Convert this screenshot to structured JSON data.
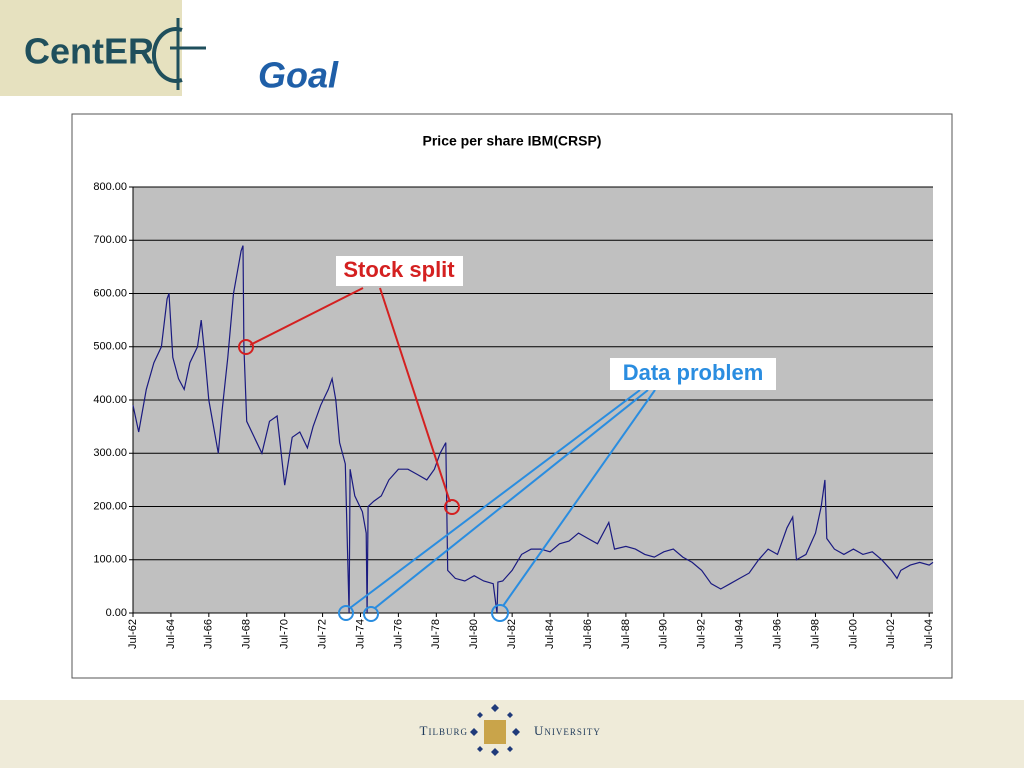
{
  "header": {
    "logo": "CentER",
    "title": "Goal"
  },
  "chart_data": {
    "type": "line",
    "title": "Price per share IBM(CRSP)",
    "x": [
      1962.5,
      1962.8,
      1963.2,
      1963.6,
      1964.0,
      1964.3,
      1964.4,
      1964.6,
      1964.9,
      1965.2,
      1965.5,
      1965.9,
      1966.1,
      1966.3,
      1966.5,
      1966.8,
      1967.0,
      1967.2,
      1967.5,
      1967.8,
      1968.0,
      1968.2,
      1968.3,
      1968.35,
      1968.5,
      1968.9,
      1969.3,
      1969.7,
      1970.1,
      1970.5,
      1970.9,
      1971.3,
      1971.7,
      1972.0,
      1972.4,
      1972.8,
      1973.0,
      1973.2,
      1973.4,
      1973.7,
      1973.9,
      1973.95,
      1974.2,
      1974.6,
      1974.8,
      1974.85,
      1974.9,
      1975.2,
      1975.6,
      1976.0,
      1976.5,
      1977.0,
      1977.5,
      1978.0,
      1978.4,
      1978.7,
      1979.0,
      1979.1,
      1979.5,
      1980.0,
      1980.5,
      1981.0,
      1981.5,
      1981.7,
      1981.75,
      1982.0,
      1982.5,
      1983.0,
      1983.5,
      1984.0,
      1984.5,
      1985.0,
      1985.5,
      1986.0,
      1986.5,
      1987.0,
      1987.6,
      1987.9,
      1988.5,
      1989.0,
      1989.5,
      1990.0,
      1990.5,
      1991.0,
      1991.5,
      1992.0,
      1992.5,
      1993.0,
      1993.5,
      1994.0,
      1994.5,
      1995.0,
      1995.5,
      1996.0,
      1996.5,
      1997.0,
      1997.3,
      1997.5,
      1998.0,
      1998.5,
      1998.8,
      1999.0,
      1999.1,
      1999.5,
      2000.0,
      2000.5,
      2001.0,
      2001.5,
      2002.0,
      2002.5,
      2002.8,
      2003.0,
      2003.5,
      2004.0,
      2004.5,
      2004.7
    ],
    "values": [
      390,
      340,
      420,
      470,
      500,
      590,
      600,
      480,
      440,
      420,
      470,
      500,
      550,
      480,
      400,
      340,
      300,
      380,
      480,
      600,
      640,
      680,
      690,
      500,
      360,
      330,
      300,
      360,
      370,
      240,
      330,
      340,
      310,
      350,
      390,
      420,
      440,
      400,
      320,
      280,
      0,
      270,
      220,
      190,
      150,
      0,
      200,
      210,
      220,
      250,
      270,
      270,
      260,
      250,
      270,
      300,
      320,
      80,
      65,
      60,
      70,
      60,
      55,
      0,
      58,
      60,
      80,
      110,
      120,
      120,
      115,
      130,
      135,
      150,
      140,
      130,
      170,
      120,
      125,
      120,
      110,
      105,
      115,
      120,
      105,
      95,
      80,
      55,
      45,
      55,
      65,
      75,
      100,
      120,
      110,
      160,
      180,
      100,
      110,
      150,
      200,
      250,
      140,
      120,
      110,
      120,
      110,
      115,
      100,
      80,
      65,
      80,
      90,
      95,
      90,
      95
    ],
    "color": "#1a1a80",
    "xlim": [
      1962.5,
      2004.7
    ],
    "xticks": [
      {
        "value": 1962.5,
        "label": "Jul-62"
      },
      {
        "value": 1964.5,
        "label": "Jul-64"
      },
      {
        "value": 1966.5,
        "label": "Jul-66"
      },
      {
        "value": 1968.5,
        "label": "Jul-68"
      },
      {
        "value": 1970.5,
        "label": "Jul-70"
      },
      {
        "value": 1972.5,
        "label": "Jul-72"
      },
      {
        "value": 1974.5,
        "label": "Jul-74"
      },
      {
        "value": 1976.5,
        "label": "Jul-76"
      },
      {
        "value": 1978.5,
        "label": "Jul-78"
      },
      {
        "value": 1980.5,
        "label": "Jul-80"
      },
      {
        "value": 1982.5,
        "label": "Jul-82"
      },
      {
        "value": 1984.5,
        "label": "Jul-84"
      },
      {
        "value": 1986.5,
        "label": "Jul-86"
      },
      {
        "value": 1988.5,
        "label": "Jul-88"
      },
      {
        "value": 1990.5,
        "label": "Jul-90"
      },
      {
        "value": 1992.5,
        "label": "Jul-92"
      },
      {
        "value": 1994.5,
        "label": "Jul-94"
      },
      {
        "value": 1996.5,
        "label": "Jul-96"
      },
      {
        "value": 1998.5,
        "label": "Jul-98"
      },
      {
        "value": 2000.5,
        "label": "Jul-00"
      },
      {
        "value": 2002.5,
        "label": "Jul-02"
      },
      {
        "value": 2004.5,
        "label": "Jul-04"
      }
    ],
    "ylim": [
      0,
      800
    ],
    "yticks": [
      {
        "value": 0,
        "label": "0.00"
      },
      {
        "value": 100,
        "label": "100.00"
      },
      {
        "value": 200,
        "label": "200.00"
      },
      {
        "value": 300,
        "label": "300.00"
      },
      {
        "value": 400,
        "label": "400.00"
      },
      {
        "value": 500,
        "label": "500.00"
      },
      {
        "value": 600,
        "label": "600.00"
      },
      {
        "value": 700,
        "label": "700.00"
      },
      {
        "value": 800,
        "label": "800.00"
      }
    ],
    "grid": true,
    "annotations": [
      "Stock split",
      "Data problem"
    ]
  },
  "footer": {
    "left": "Tilburg",
    "right": "University"
  }
}
